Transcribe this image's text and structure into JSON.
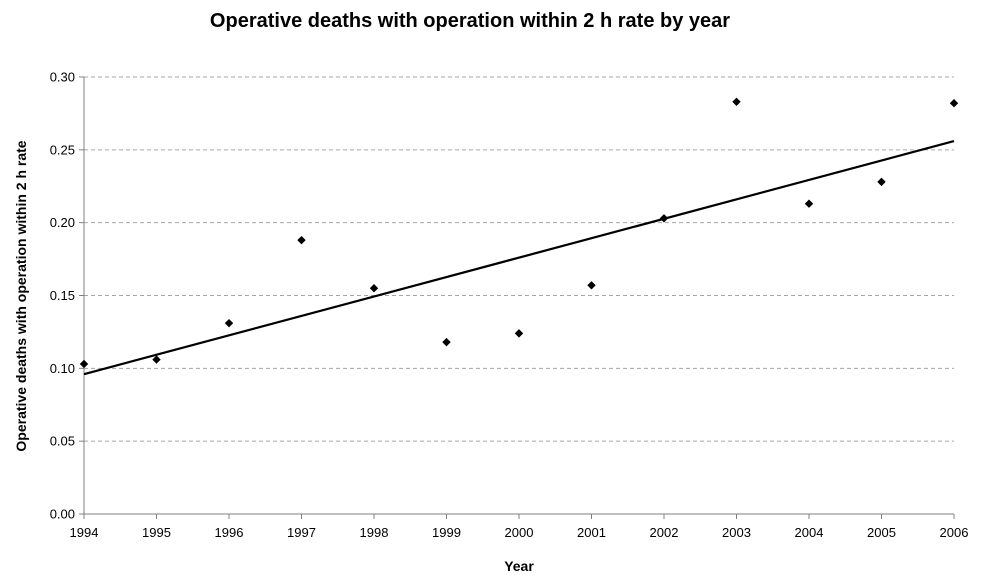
{
  "chart_data": {
    "type": "scatter",
    "title": "Operative deaths with operation within 2 h rate by year",
    "xlabel": "Year",
    "ylabel": "Operative deaths with operation within 2 h rate",
    "x": [
      1994,
      1995,
      1996,
      1997,
      1998,
      1999,
      2000,
      2001,
      2002,
      2003,
      2004,
      2005,
      2006
    ],
    "y": [
      0.103,
      0.106,
      0.131,
      0.188,
      0.155,
      0.118,
      0.124,
      0.157,
      0.203,
      0.283,
      0.213,
      0.228,
      0.282
    ],
    "xlim": [
      1994,
      2006
    ],
    "ylim": [
      0,
      0.3
    ],
    "x_ticks": [
      1994,
      1995,
      1996,
      1997,
      1998,
      1999,
      2000,
      2001,
      2002,
      2003,
      2004,
      2005,
      2006
    ],
    "y_ticks": [
      "0.00",
      "0.05",
      "0.10",
      "0.15",
      "0.20",
      "0.25",
      "0.30"
    ],
    "y_tick_values": [
      0,
      0.05,
      0.1,
      0.15,
      0.2,
      0.25,
      0.3
    ],
    "trendline": {
      "type": "linear",
      "start": [
        1994,
        0.096
      ],
      "end": [
        2006,
        0.256
      ]
    },
    "grid": true,
    "legend": "none",
    "marker": "diamond",
    "colors": {
      "points": "#000000",
      "trendline": "#000000",
      "grid": "#a6a6a6",
      "axis": "#808080"
    }
  }
}
